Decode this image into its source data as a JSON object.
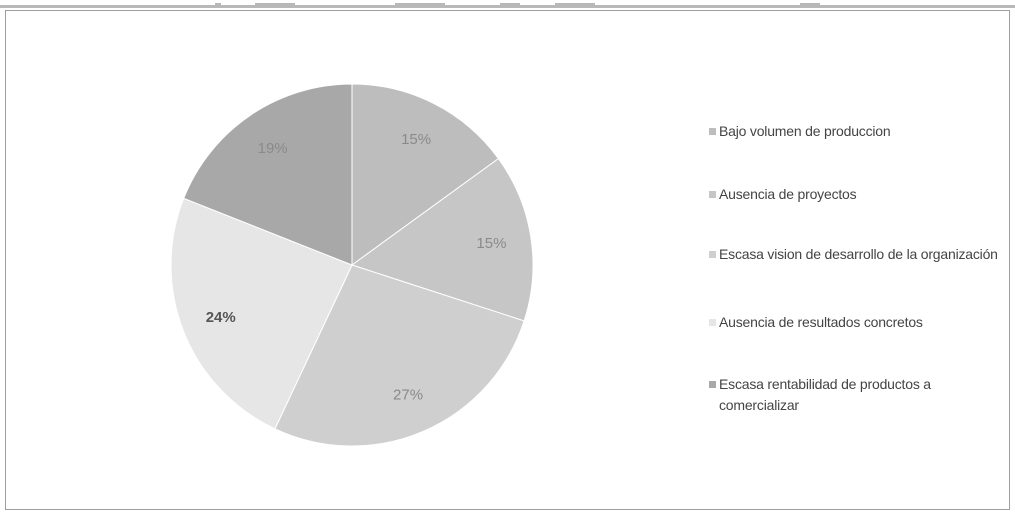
{
  "chart_data": {
    "type": "pie",
    "title": "",
    "slices": [
      {
        "label": "Bajo volumen de produccion",
        "value": 15,
        "display": "15%",
        "color": "#bdbdbd",
        "bold": false
      },
      {
        "label": "Ausencia de proyectos",
        "value": 15,
        "display": "15%",
        "color": "#c6c6c6",
        "bold": false
      },
      {
        "label": "Escasa vision de desarrollo de la organización",
        "value": 27,
        "display": "27%",
        "color": "#cfcfcf",
        "bold": false
      },
      {
        "label": "Ausencia de resultados concretos",
        "value": 24,
        "display": "24%",
        "color": "#e6e6e6",
        "bold": true
      },
      {
        "label": "Escasa rentabilidad de productos a comercializar",
        "value": 19,
        "display": "19%",
        "color": "#a8a8a8",
        "bold": false
      }
    ],
    "start_angle_deg": 0,
    "direction": "clockwise",
    "legend_position": "right"
  }
}
